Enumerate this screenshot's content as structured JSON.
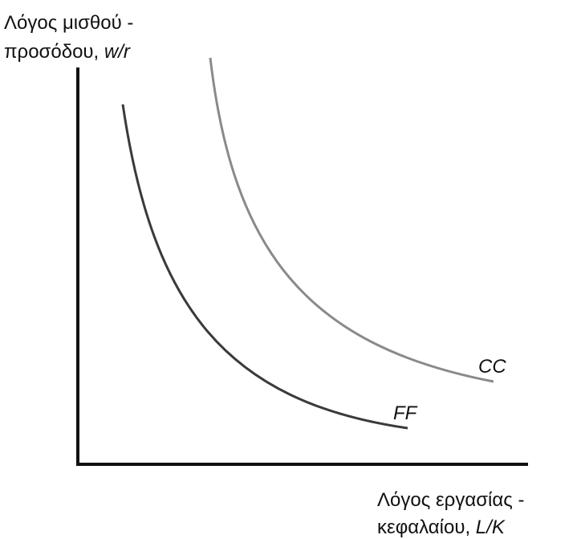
{
  "y_axis": {
    "label_line1": "Λόγος μισθού -",
    "label_line2": "προσόδου, ",
    "label_var": "w/r"
  },
  "x_axis": {
    "label_line1": "Λόγος εργασίας -",
    "label_line2": "κεφαλαίου, ",
    "label_var": "L/K"
  },
  "curves": [
    {
      "label": "CC"
    },
    {
      "label": "FF"
    }
  ]
}
